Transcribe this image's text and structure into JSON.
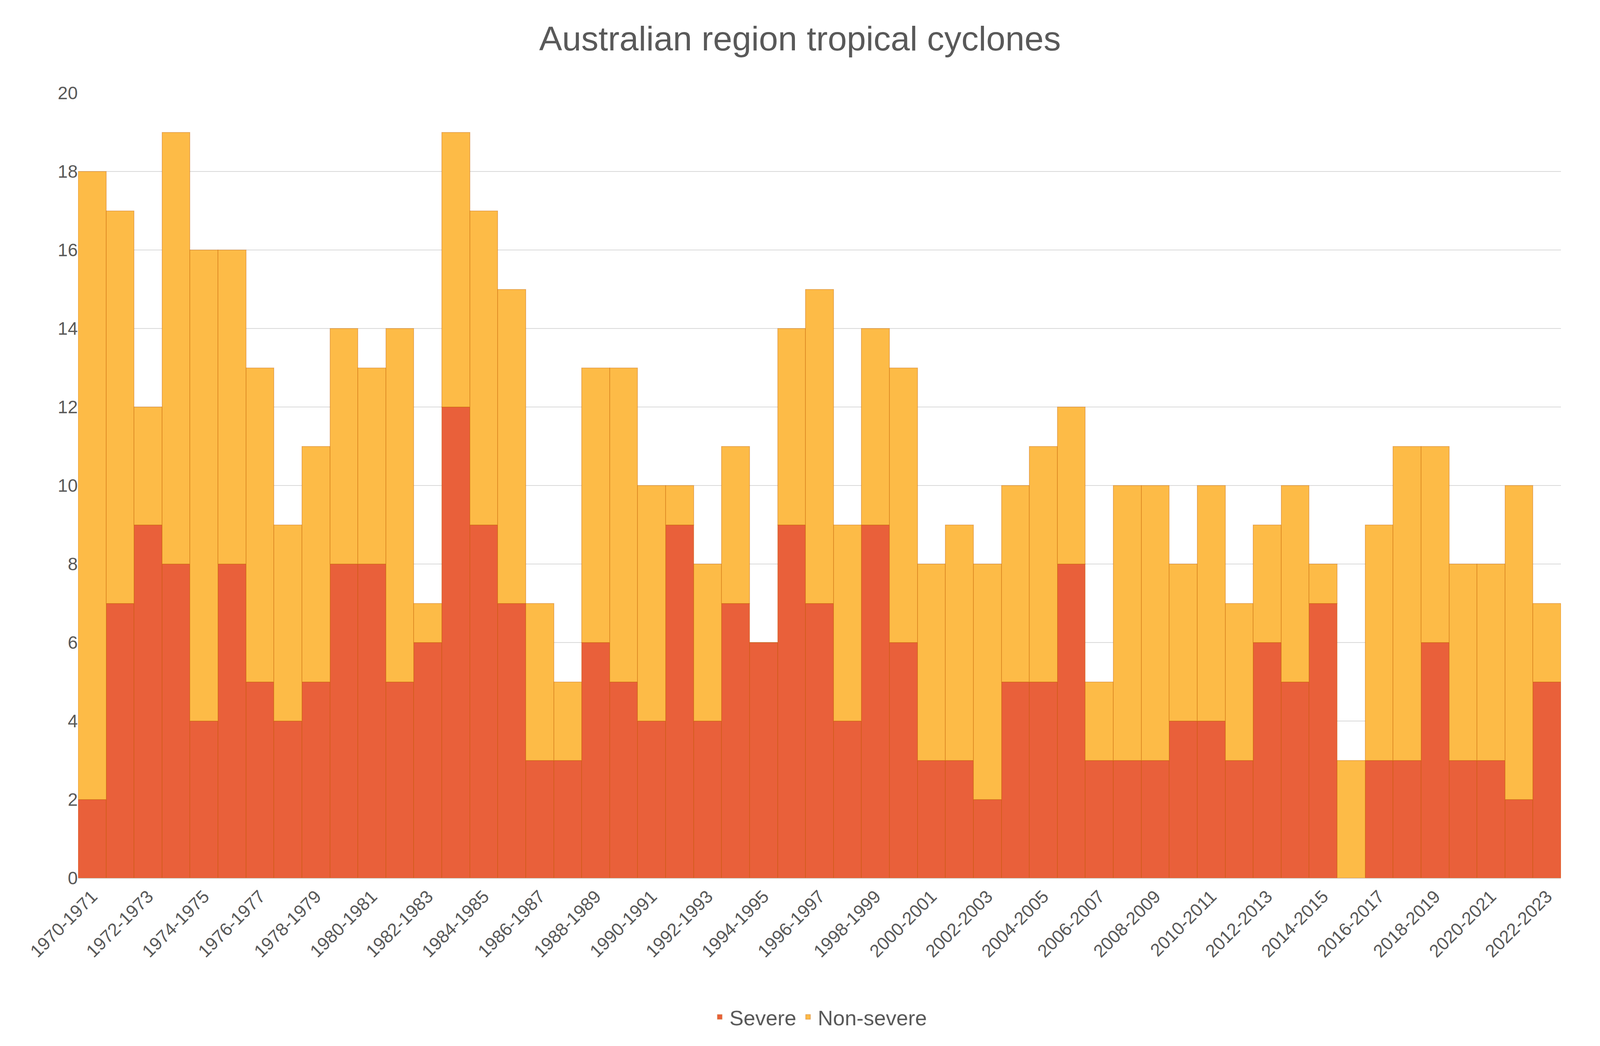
{
  "chart_data": {
    "type": "bar",
    "title": "Australian region tropical cyclones",
    "stacked": true,
    "grid": true,
    "legend": "bottom",
    "categories": [
      "1970-1971",
      null,
      "1972-1973",
      null,
      "1974-1975",
      null,
      "1976-1977",
      null,
      "1978-1979",
      null,
      "1980-1981",
      null,
      "1982-1983",
      null,
      "1984-1985",
      null,
      "1986-1987",
      null,
      "1988-1989",
      null,
      "1990-1991",
      null,
      "1992-1993",
      null,
      "1994-1995",
      null,
      "1996-1997",
      null,
      "1998-1999",
      null,
      "2000-2001",
      null,
      "2002-2003",
      null,
      "2004-2005",
      null,
      "2006-2007",
      null,
      "2008-2009",
      null,
      "2010-2011",
      null,
      "2012-2013",
      null,
      "2014-2015",
      null,
      "2016-2017",
      null,
      "2018-2019",
      null,
      "2020-2021",
      null,
      "2022-2023"
    ],
    "series": [
      {
        "name": "Severe",
        "color": "#E9603A",
        "values": [
          2,
          7,
          9,
          8,
          4,
          8,
          5,
          4,
          5,
          8,
          8,
          5,
          6,
          12,
          9,
          7,
          3,
          3,
          6,
          5,
          4,
          9,
          4,
          7,
          6,
          9,
          7,
          4,
          9,
          6,
          3,
          3,
          2,
          5,
          5,
          8,
          3,
          3,
          3,
          4,
          4,
          3,
          6,
          5,
          7,
          0,
          3,
          3,
          6,
          3,
          3,
          2,
          5
        ]
      },
      {
        "name": "Non-severe",
        "color": "#FDBB47",
        "values": [
          16,
          10,
          3,
          11,
          12,
          8,
          8,
          5,
          6,
          6,
          5,
          9,
          1,
          7,
          8,
          8,
          4,
          2,
          7,
          8,
          6,
          1,
          4,
          4,
          0,
          5,
          8,
          5,
          5,
          7,
          5,
          6,
          6,
          5,
          6,
          4,
          2,
          7,
          7,
          4,
          6,
          4,
          3,
          5,
          1,
          3,
          6,
          8,
          5,
          5,
          5,
          8,
          2
        ]
      }
    ],
    "ylim": [
      0,
      20
    ],
    "yticks": [
      0,
      2,
      4,
      6,
      8,
      10,
      12,
      14,
      16,
      18,
      20
    ]
  }
}
